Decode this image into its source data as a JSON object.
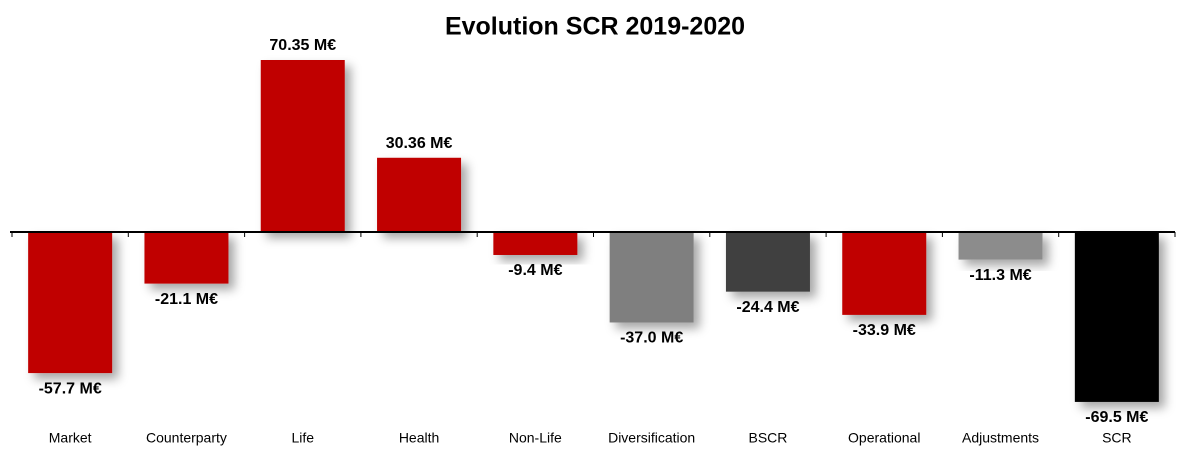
{
  "chart_data": {
    "type": "bar",
    "title": "Evolution SCR 2019-2020",
    "categories": [
      "Market",
      "Counterparty",
      "Life",
      "Health",
      "Non-Life",
      "Diversification",
      "BSCR",
      "Operational",
      "Adjustments",
      "SCR"
    ],
    "values": [
      -57.7,
      -21.1,
      70.35,
      30.36,
      -9.4,
      -37.0,
      -24.4,
      -33.9,
      -11.3,
      -69.5
    ],
    "value_labels": [
      "-57.7 M€",
      "-21.1 M€",
      "70.35 M€",
      "30.36 M€",
      "-9.4 M€",
      "-37.0 M€",
      "-24.4 M€",
      "-33.9 M€",
      "-11.3 M€",
      "-69.5 M€"
    ],
    "colors": [
      "#c00000",
      "#c00000",
      "#c00000",
      "#c00000",
      "#c00000",
      "#7f7f7f",
      "#404040",
      "#c00000",
      "#8c8c8c",
      "#000000"
    ]
  }
}
